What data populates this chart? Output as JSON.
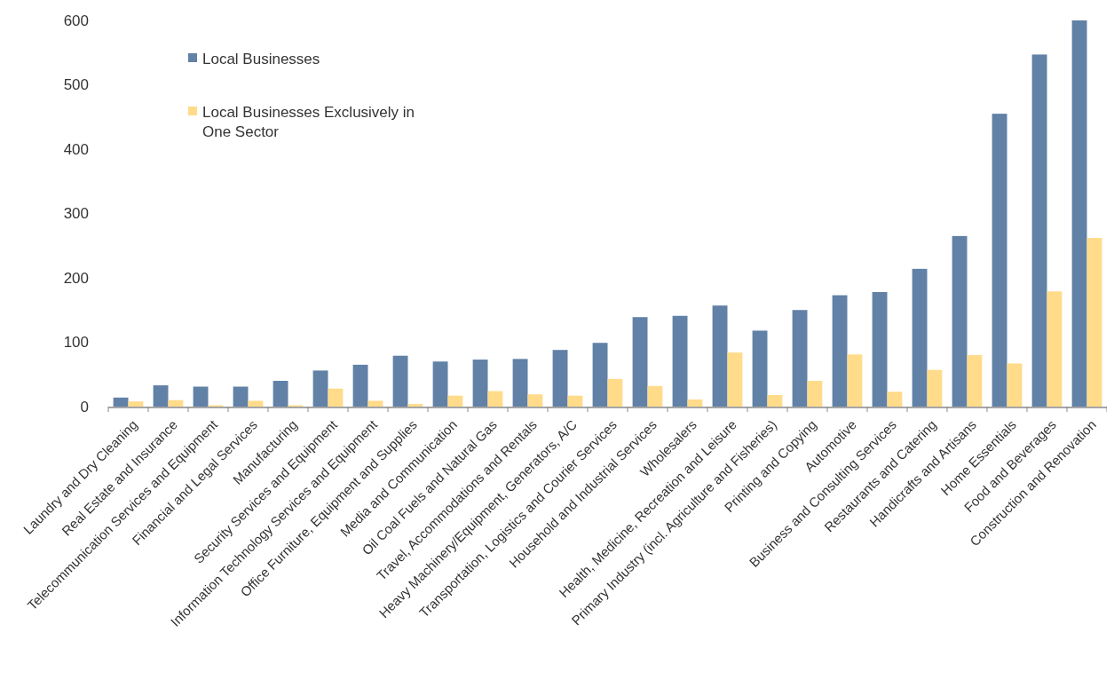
{
  "chart_data": {
    "type": "bar",
    "categories": [
      "Laundry and Dry Cleaning",
      "Real Estate and Insurance",
      "Telecommunication Services and Equipment",
      "Financial and Legal Services",
      "Manufacturing",
      "Security Services and Equipment",
      "Information Technology Services and Equipment",
      "Office Furniture, Equipment and Supplies",
      "Media and Communication",
      "Oil Coal Fuels and Natural Gas",
      "Travel, Accommodations and Rentals",
      "Heavy Machinery/Equipment, Generators, A/C",
      "Transportation, Logistics and Courier Services",
      "Household and Industrial Services",
      "Wholesalers",
      "Health, Medicine, Recreation and Leisure",
      "Primary Industry (incl. Agriculture and Fisheries)",
      "Printing and Copying",
      "Automotive",
      "Business and Consulting Services",
      "Restaurants and Catering",
      "Handicrafts and Artisans",
      "Home Essentials",
      "Food and Beverages",
      "Construction and Renovation"
    ],
    "series": [
      {
        "name": "Local Businesses",
        "color": "#6181a6",
        "values": [
          14,
          33,
          31,
          31,
          40,
          56,
          65,
          79,
          70,
          73,
          74,
          88,
          99,
          139,
          141,
          157,
          118,
          150,
          173,
          178,
          214,
          265,
          455,
          547,
          600
        ]
      },
      {
        "name": "Local Businesses Exclusively in One Sector",
        "color": "#ffdb8a",
        "values": [
          8,
          10,
          2,
          9,
          2,
          28,
          9,
          4,
          17,
          24,
          19,
          17,
          43,
          32,
          11,
          84,
          18,
          40,
          81,
          23,
          57,
          80,
          67,
          179,
          262
        ]
      }
    ],
    "ylim": [
      0,
      600
    ],
    "yticks": [
      0,
      100,
      200,
      300,
      400,
      500,
      600
    ],
    "grid": false,
    "legend": "top left"
  }
}
